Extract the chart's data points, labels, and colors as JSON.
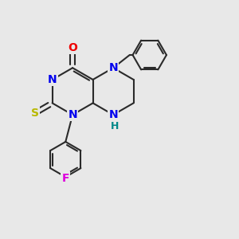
{
  "bg_color": "#e8e8e8",
  "bond_color": "#2a2a2a",
  "bond_width": 1.5,
  "atom_colors": {
    "N": "#0000ee",
    "O": "#ee0000",
    "S": "#b8b800",
    "F": "#dd00dd",
    "H_teal": "#008888",
    "C": "#2a2a2a"
  },
  "font_size": 10
}
